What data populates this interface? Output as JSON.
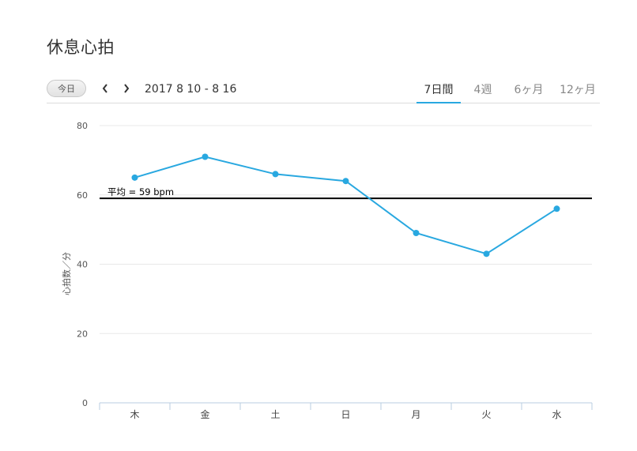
{
  "page_title": "休息心拍",
  "toolbar": {
    "today_label": "今日",
    "prev_icon": "chevron-left-icon",
    "next_icon": "chevron-right-icon",
    "date_range": "2017 8 10 - 8 16",
    "tabs": [
      {
        "label": "7日間",
        "active": true
      },
      {
        "label": "4週",
        "active": false
      },
      {
        "label": "6ヶ月",
        "active": false
      },
      {
        "label": "12ヶ月",
        "active": false
      }
    ]
  },
  "chart_data": {
    "type": "line",
    "ylabel": "心拍数／分",
    "xlabel": "",
    "categories": [
      "木",
      "金",
      "土",
      "日",
      "月",
      "火",
      "水"
    ],
    "values": [
      65,
      71,
      66,
      64,
      49,
      43,
      56
    ],
    "ylim": [
      0,
      80
    ],
    "yticks": [
      0,
      20,
      40,
      60,
      80
    ],
    "grid": true,
    "average": {
      "value": 59,
      "label": "平均 = 59 bpm"
    },
    "colors": {
      "line": "#29a8e0",
      "average": "#000000",
      "grid": "#e8e8e8",
      "axis": "#b9cde0"
    }
  }
}
